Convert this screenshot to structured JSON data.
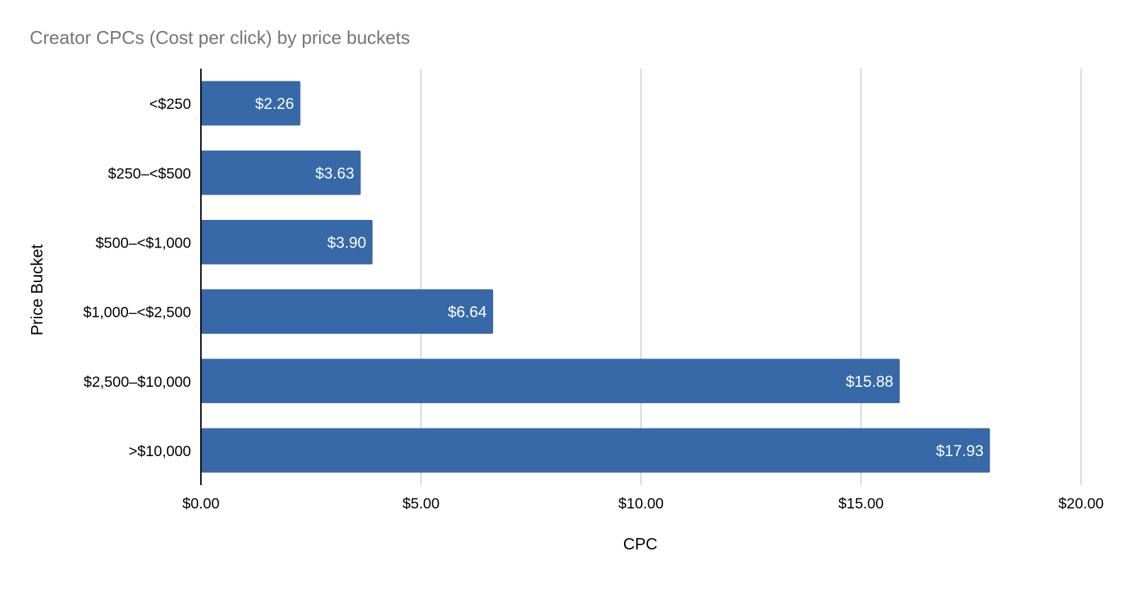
{
  "chart_data": {
    "type": "bar",
    "orientation": "horizontal",
    "title": "Creator CPCs (Cost per click) by price buckets",
    "xlabel": "CPC",
    "ylabel": "Price Bucket",
    "categories": [
      "<$250",
      "$250–<$500",
      "$500–<$1,000",
      "$1,000–<$2,500",
      "$2,500–$10,000",
      ">$10,000"
    ],
    "values": [
      2.26,
      3.63,
      3.9,
      6.64,
      15.88,
      17.93
    ],
    "data_labels": [
      "$2.26",
      "$3.63",
      "$3.90",
      "$6.64",
      "$15.88",
      "$17.93"
    ],
    "xlim": [
      0,
      20
    ],
    "xticks": [
      0,
      5,
      10,
      15,
      20
    ],
    "xtick_labels": [
      "$0.00",
      "$5.00",
      "$10.00",
      "$15.00",
      "$20.00"
    ],
    "grid": true,
    "legend": "none",
    "colors": {
      "bar": "#3769a8",
      "gridline": "#cccccc",
      "title": "#757575"
    }
  }
}
